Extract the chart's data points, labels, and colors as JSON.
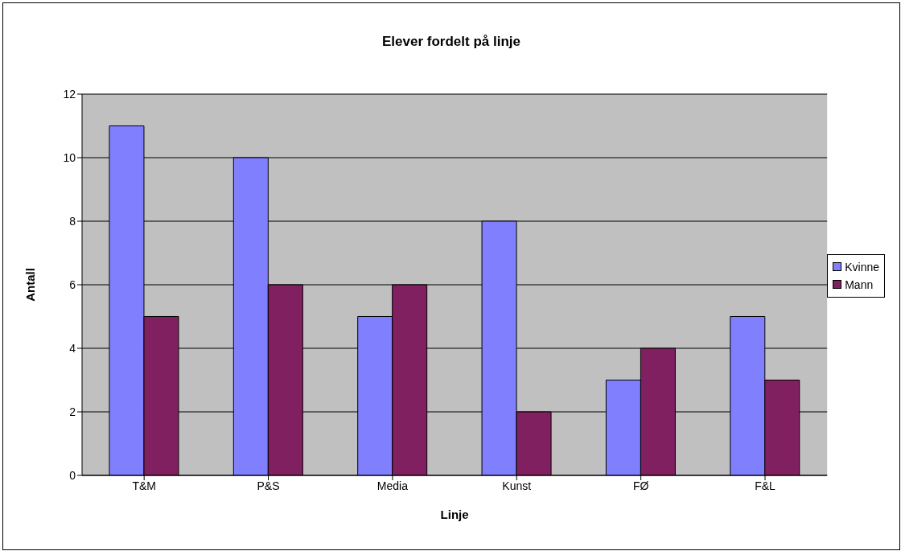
{
  "chart_data": {
    "type": "bar",
    "title": "Elever fordelt på linje",
    "xlabel": "Linje",
    "ylabel": "Antall",
    "categories": [
      "T&M",
      "P&S",
      "Media",
      "Kunst",
      "FØ",
      "F&L"
    ],
    "series": [
      {
        "name": "Kvinne",
        "color": "#8080ff",
        "values": [
          11,
          10,
          5,
          8,
          3,
          5
        ]
      },
      {
        "name": "Mann",
        "color": "#802060",
        "values": [
          5,
          6,
          6,
          2,
          4,
          3
        ]
      }
    ],
    "ylim": [
      0,
      12
    ],
    "yticks": [
      0,
      2,
      4,
      6,
      8,
      10,
      12
    ],
    "grid": "y",
    "legend": "right"
  }
}
